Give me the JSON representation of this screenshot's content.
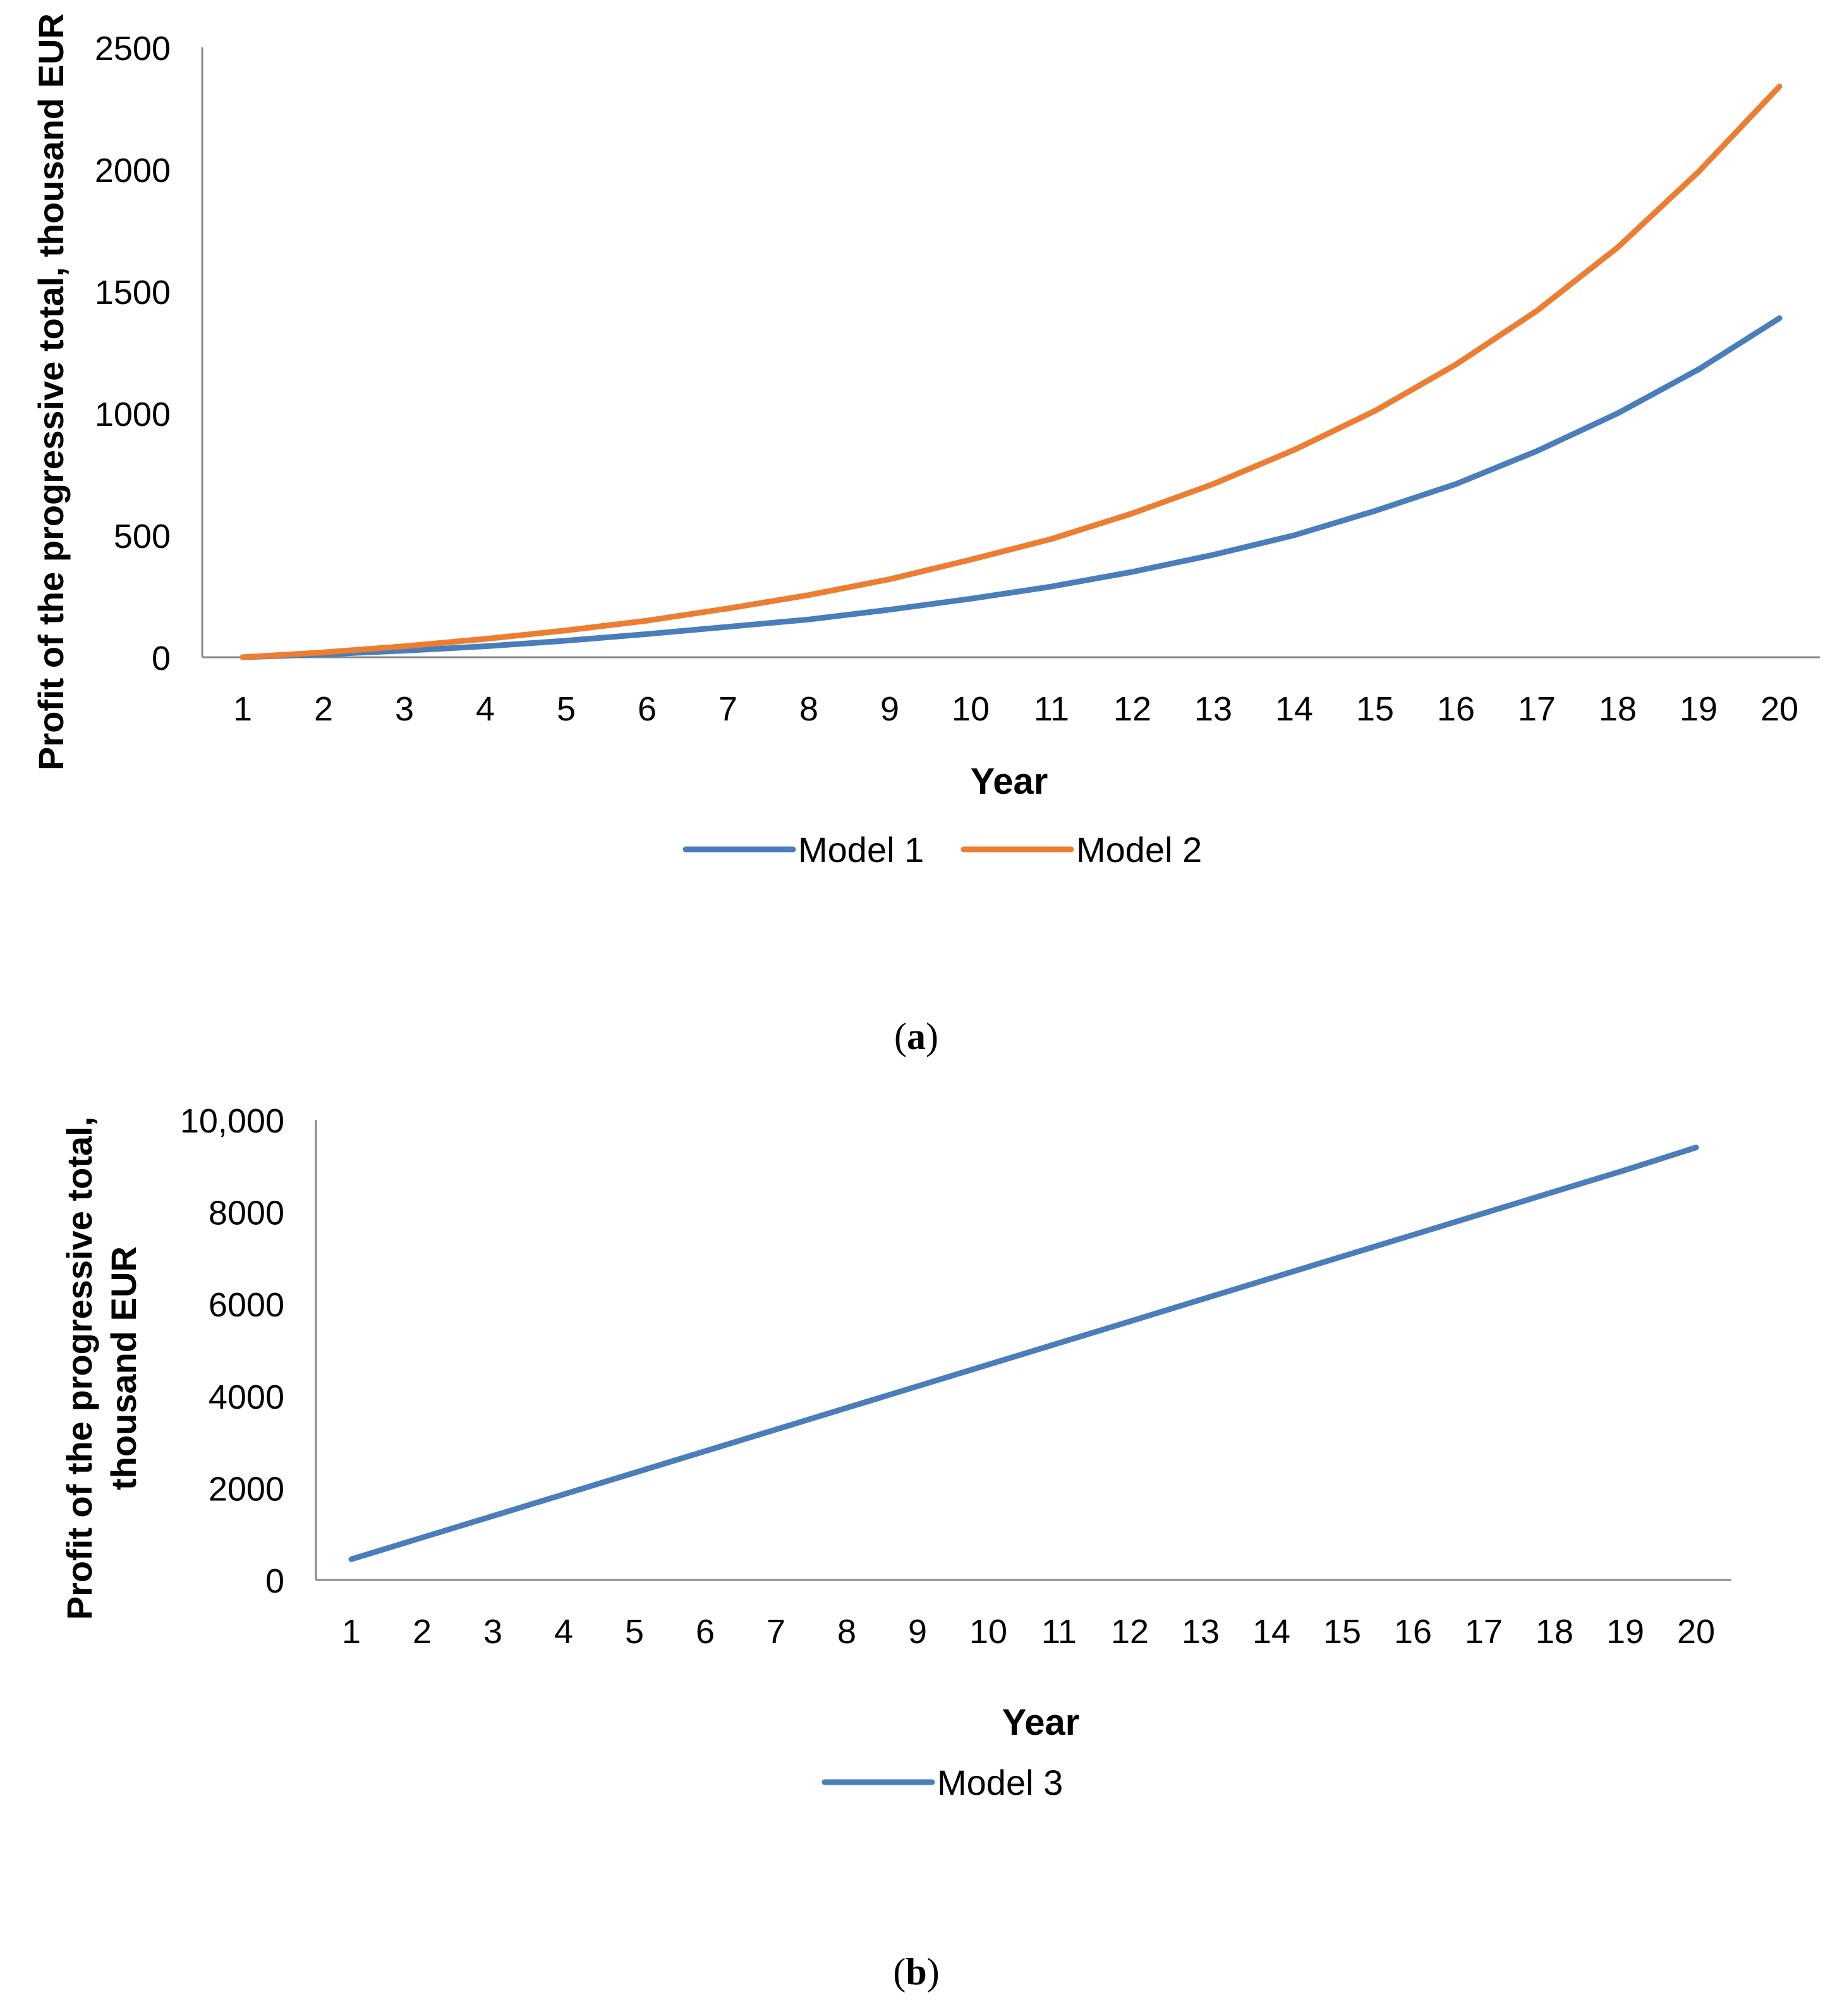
{
  "chart_data": [
    {
      "type": "line",
      "panel_label": "a",
      "xlabel": "Year",
      "ylabel": "Profit of the progressive total, thousand EUR",
      "ylim": [
        0,
        2500
      ],
      "yticks": [
        "0",
        "500",
        "1000",
        "1500",
        "2000",
        "2500"
      ],
      "categories": [
        "1",
        "2",
        "3",
        "4",
        "5",
        "6",
        "7",
        "8",
        "9",
        "10",
        "11",
        "12",
        "13",
        "14",
        "15",
        "16",
        "17",
        "18",
        "19",
        "20"
      ],
      "grid": false,
      "legend": "bottom-center",
      "series": [
        {
          "name": "Model 1",
          "color": "#4a7ebb",
          "values": [
            0,
            12,
            27,
            45,
            68,
            95,
            125,
            155,
            195,
            240,
            290,
            350,
            420,
            500,
            600,
            710,
            845,
            1000,
            1180,
            1390
          ]
        },
        {
          "name": "Model 2",
          "color": "#ed7d31",
          "values": [
            0,
            20,
            45,
            75,
            110,
            150,
            200,
            255,
            320,
            400,
            485,
            590,
            710,
            850,
            1010,
            1200,
            1420,
            1680,
            1990,
            2340
          ]
        }
      ]
    },
    {
      "type": "line",
      "panel_label": "b",
      "xlabel": "Year",
      "ylabel_lines": [
        "Profit of the progressive total,",
        "thousand EUR"
      ],
      "ylim": [
        0,
        10000
      ],
      "yticks": [
        "0",
        "2000",
        "4000",
        "6000",
        "8000",
        "10,000"
      ],
      "categories": [
        "1",
        "2",
        "3",
        "4",
        "5",
        "6",
        "7",
        "8",
        "9",
        "10",
        "11",
        "12",
        "13",
        "14",
        "15",
        "16",
        "17",
        "18",
        "19",
        "20"
      ],
      "grid": false,
      "legend": "bottom-center",
      "series": [
        {
          "name": "Model 3",
          "color": "#4a7ebb",
          "values": [
            450,
            920,
            1390,
            1860,
            2330,
            2800,
            3270,
            3740,
            4210,
            4680,
            5150,
            5620,
            6090,
            6560,
            7030,
            7500,
            7970,
            8440,
            8910,
            9400
          ]
        }
      ]
    }
  ]
}
